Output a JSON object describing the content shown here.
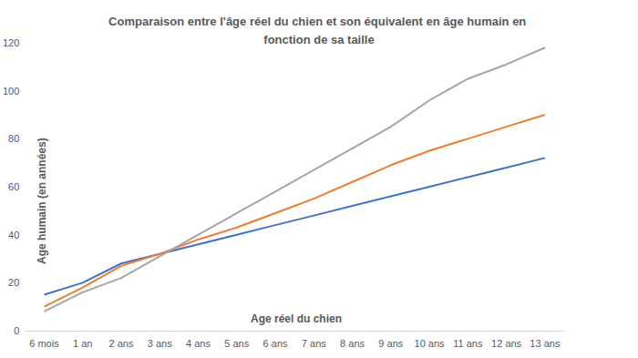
{
  "chart_data": {
    "type": "line",
    "title": "Comparaison entre l'âge réel du chien et son équivalent en âge humain en fonction de sa taille",
    "x_label": "Age réel du chien",
    "y_label": "Age humain (en années)",
    "categories": [
      "6 mois",
      "1 an",
      "2 ans",
      "3 ans",
      "4 ans",
      "5 ans",
      "6 ans",
      "7 ans",
      "8 ans",
      "9 ans",
      "10 ans",
      "11 ans",
      "12 ans",
      "13 ans"
    ],
    "series": [
      {
        "color": "#4472c4",
        "values": [
          15,
          20,
          28,
          32,
          36,
          40,
          44,
          48,
          52,
          56,
          60,
          64,
          68,
          72
        ]
      },
      {
        "color": "#ed7d31",
        "values": [
          10,
          18,
          27,
          32,
          38,
          43,
          49,
          55,
          62,
          69,
          75,
          80,
          85,
          90
        ]
      },
      {
        "color": "#a5a5a5",
        "values": [
          8,
          16,
          22,
          31,
          40,
          49,
          58,
          67,
          76,
          85,
          96,
          105,
          111,
          118
        ]
      }
    ],
    "ylim": [
      0,
      120
    ],
    "yticks": [
      0,
      20,
      40,
      60,
      80,
      100,
      120
    ],
    "grid": false
  }
}
